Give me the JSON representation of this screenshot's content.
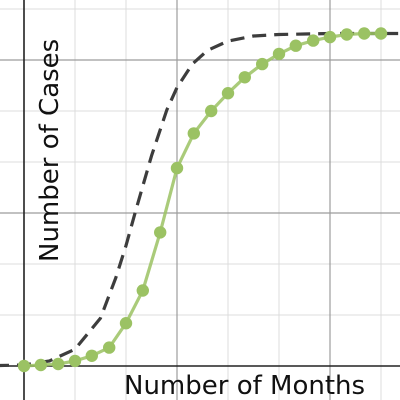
{
  "chart_data": {
    "type": "line",
    "title": "",
    "xlabel": "Number of Months",
    "ylabel": "Number of Cases",
    "x_range": [
      -1,
      7.5
    ],
    "y_range": [
      -0.3,
      7.2
    ],
    "grid": true,
    "legend": "none",
    "series": [
      {
        "style": "dashed",
        "color": "#3d3d3d",
        "x": [
          -1,
          0,
          0.5,
          1.0,
          1.5,
          1.8,
          2.0,
          2.2,
          2.5,
          2.8,
          3.0,
          3.3,
          3.6,
          4.0,
          4.5,
          5.0,
          5.5,
          6.0,
          6.5,
          7.0,
          7.5
        ],
        "y": [
          0.0,
          0.02,
          0.1,
          0.33,
          0.94,
          1.73,
          2.36,
          3.08,
          4.12,
          5.02,
          5.46,
          5.92,
          6.19,
          6.37,
          6.47,
          6.5,
          6.51,
          6.52,
          6.52,
          6.52,
          6.52
        ]
      },
      {
        "style": "line-with-markers",
        "color": "#9bc263",
        "x": [
          0,
          0.33,
          0.67,
          1.0,
          1.33,
          1.67,
          2.0,
          2.33,
          2.67,
          3.0,
          3.33,
          3.67,
          4.0,
          4.33,
          4.67,
          5.0,
          5.33,
          5.67,
          6.0,
          6.33,
          6.67,
          7.0
        ],
        "y": [
          0.0,
          0.02,
          0.04,
          0.1,
          0.2,
          0.36,
          0.84,
          1.48,
          2.62,
          3.88,
          4.56,
          5.0,
          5.35,
          5.66,
          5.92,
          6.12,
          6.28,
          6.38,
          6.45,
          6.5,
          6.52,
          6.52
        ]
      }
    ]
  }
}
